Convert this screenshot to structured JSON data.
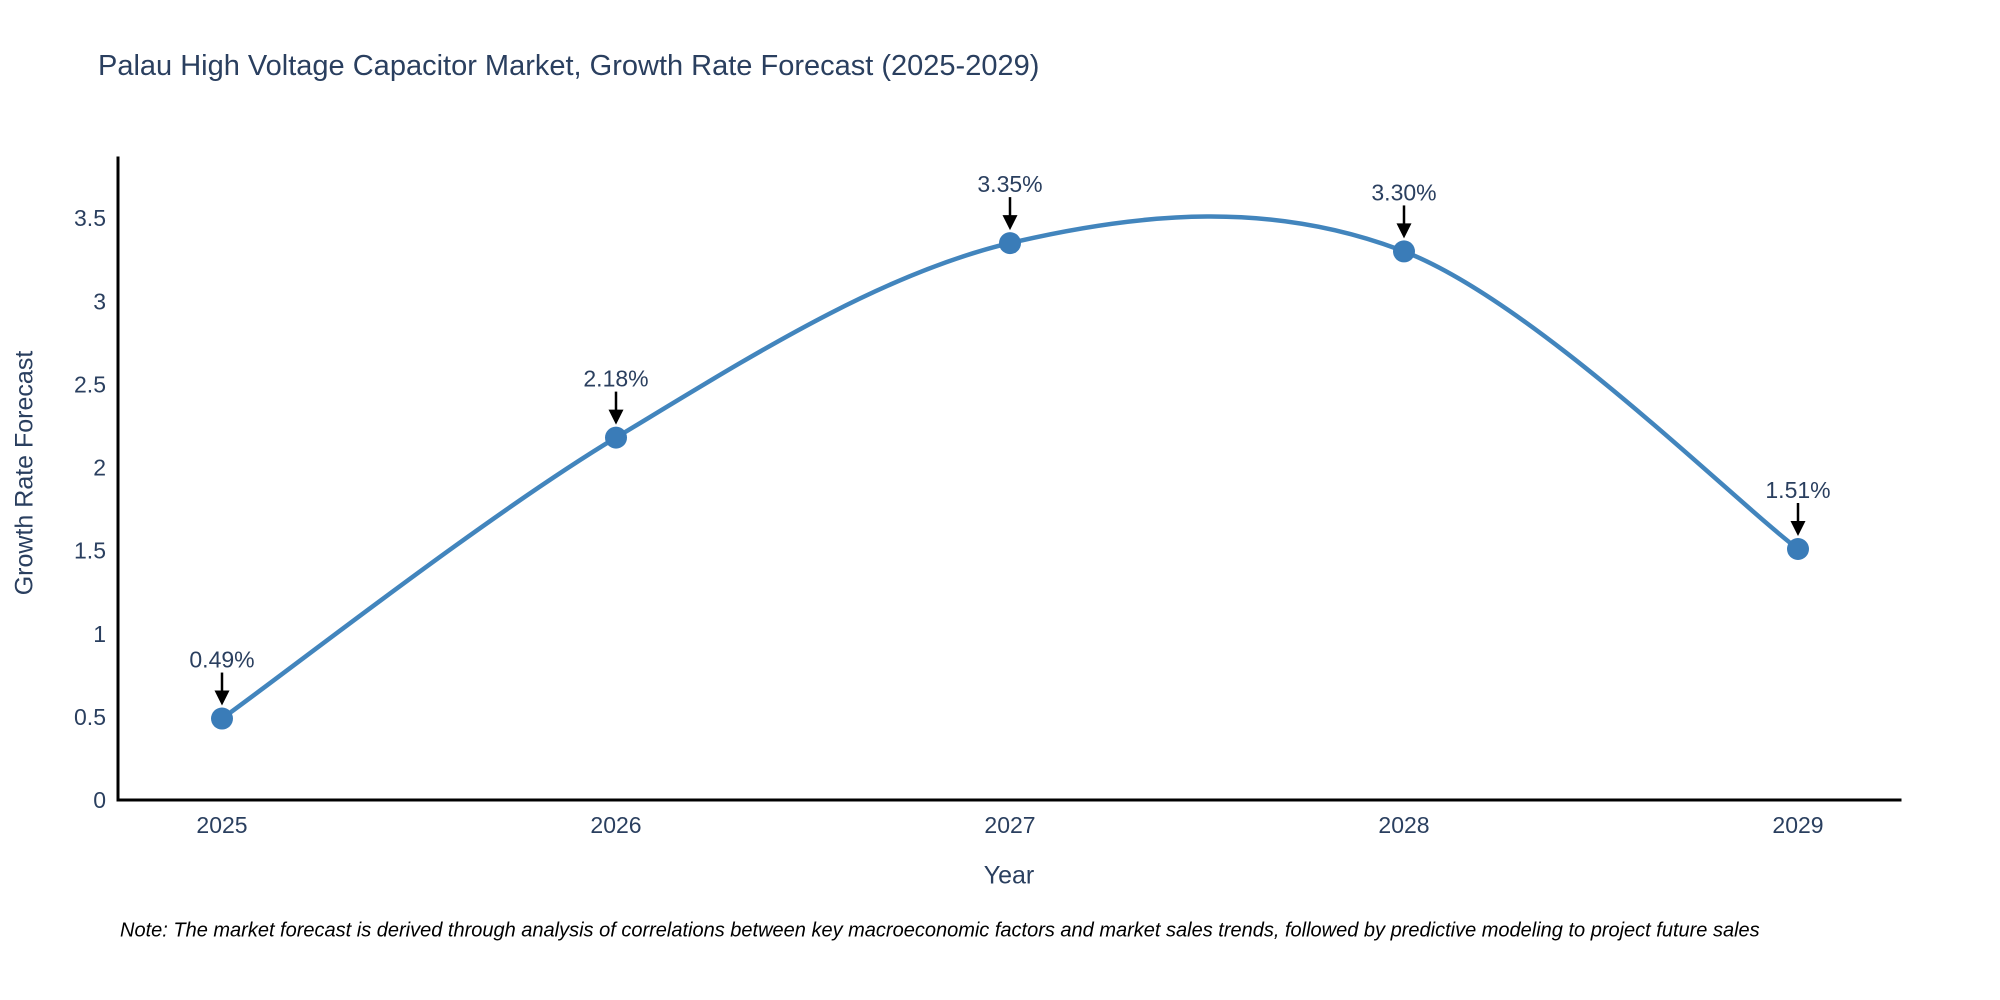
{
  "note": "Note: The market forecast is derived through analysis of correlations between key macroeconomic factors and market sales trends, followed by predictive modeling to project future sales",
  "chart_data": {
    "type": "line",
    "title": "Palau High Voltage Capacitor Market, Growth Rate Forecast (2025-2029)",
    "xlabel": "Year",
    "ylabel": "Growth Rate Forecast",
    "x": [
      2025,
      2026,
      2027,
      2028,
      2029
    ],
    "values": [
      0.49,
      2.18,
      3.35,
      3.3,
      1.51
    ],
    "point_labels": [
      "0.49%",
      "2.18%",
      "3.35%",
      "3.30%",
      "1.51%"
    ],
    "yticks": [
      0,
      0.5,
      1,
      1.5,
      2,
      2.5,
      3,
      3.5
    ],
    "ytick_labels": [
      "0",
      "0.5",
      "1",
      "1.5",
      "2",
      "2.5",
      "3",
      "3.5"
    ],
    "ylim": [
      0,
      3.85
    ],
    "grid": false,
    "legend": "none",
    "line_shape": "spline",
    "line_color": "#4285bd",
    "marker_color": "#3a7cb8",
    "arrow_color": "#000000",
    "axis_color": "#000000",
    "text_color": "#2a3f5f",
    "annotation_color": "#2a3f5f"
  }
}
